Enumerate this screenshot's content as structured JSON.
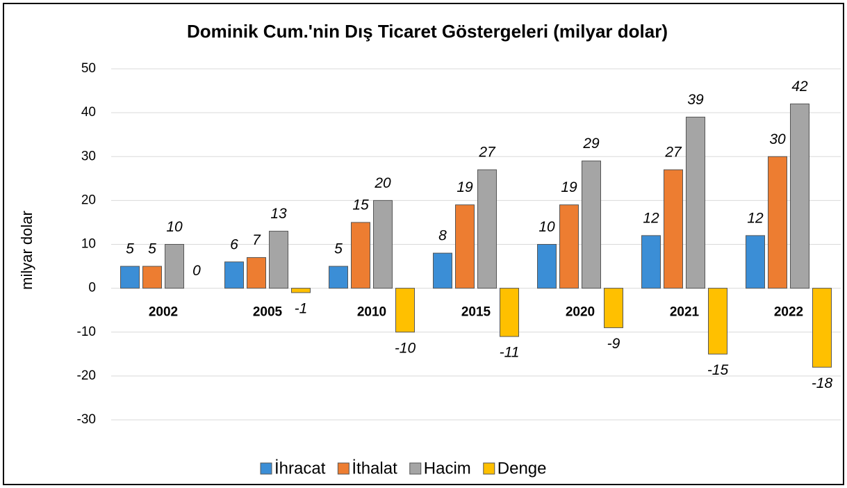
{
  "chart_data": {
    "type": "bar",
    "title": "Dominik Cum.'nin Dış Ticaret Göstergeleri  (milyar dolar)",
    "y_label": "milyar dolar",
    "categories": [
      "2002",
      "2005",
      "2010",
      "2015",
      "2020",
      "2021",
      "2022"
    ],
    "series": [
      {
        "name": "İhracat",
        "color": "#3b8ed6",
        "values": [
          5,
          6,
          5,
          8,
          10,
          12,
          12
        ]
      },
      {
        "name": "İthalat",
        "color": "#ed7d31",
        "values": [
          5,
          7,
          15,
          19,
          19,
          27,
          30
        ]
      },
      {
        "name": "Hacim",
        "color": "#a5a5a5",
        "values": [
          10,
          13,
          20,
          27,
          29,
          39,
          42
        ]
      },
      {
        "name": "Denge",
        "color": "#ffc000",
        "values": [
          0,
          -1,
          -10,
          -11,
          -9,
          -15,
          -18
        ]
      }
    ],
    "ylim": [
      -30,
      50
    ],
    "yticks": [
      -30,
      -20,
      -10,
      0,
      10,
      20,
      30,
      40,
      50
    ],
    "grid": true,
    "legend": "bottom"
  }
}
